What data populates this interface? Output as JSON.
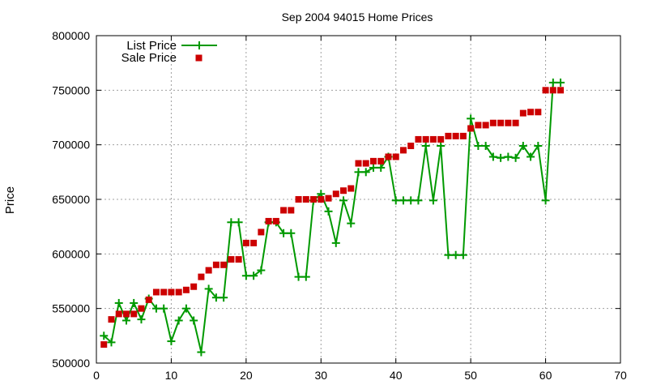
{
  "chart_data": {
    "type": "line",
    "title": "Sep 2004 94015 Home Prices",
    "xlabel": "",
    "ylabel": "Price",
    "xlim": [
      0,
      70
    ],
    "ylim": [
      500000,
      800000
    ],
    "x_ticks": [
      0,
      10,
      20,
      30,
      40,
      50,
      60,
      70
    ],
    "y_ticks": [
      500000,
      550000,
      600000,
      650000,
      700000,
      750000,
      800000
    ],
    "x_tick_labels": [
      "0",
      "10",
      "20",
      "30",
      "40",
      "50",
      "60",
      "70"
    ],
    "y_tick_labels": [
      "500000",
      "550000",
      "600000",
      "650000",
      "700000",
      "750000",
      "800000"
    ],
    "grid": true,
    "legend_position": "top-left",
    "series": [
      {
        "name": "List Price",
        "kind": "line-plus",
        "color": "#009900",
        "x": [
          1,
          2,
          3,
          4,
          5,
          6,
          7,
          8,
          9,
          10,
          11,
          12,
          13,
          14,
          15,
          16,
          17,
          18,
          19,
          20,
          21,
          22,
          23,
          24,
          25,
          26,
          27,
          28,
          29,
          30,
          31,
          32,
          33,
          34,
          35,
          36,
          37,
          38,
          39,
          40,
          41,
          42,
          43,
          44,
          45,
          46,
          47,
          48,
          49,
          50,
          51,
          52,
          53,
          54,
          55,
          56,
          57,
          58,
          59,
          60,
          61,
          62
        ],
        "values": [
          525000,
          519000,
          555000,
          539000,
          555000,
          540000,
          559000,
          550000,
          550000,
          520000,
          539000,
          550000,
          539000,
          510000,
          568000,
          560000,
          560000,
          629000,
          629000,
          580000,
          580000,
          585000,
          629000,
          629000,
          619000,
          619000,
          579000,
          579000,
          649000,
          655000,
          639000,
          610000,
          649000,
          628000,
          675000,
          675000,
          679000,
          679000,
          689000,
          649000,
          649000,
          649000,
          649000,
          699000,
          649000,
          699000,
          599000,
          599000,
          599000,
          724000,
          699000,
          699000,
          689000,
          688000,
          689000,
          688000,
          699000,
          689000,
          699000,
          649000,
          757000,
          757000
        ]
      },
      {
        "name": "Sale Price",
        "kind": "square",
        "color": "#cc0000",
        "x": [
          1,
          2,
          3,
          4,
          5,
          6,
          7,
          8,
          9,
          10,
          11,
          12,
          13,
          14,
          15,
          16,
          17,
          18,
          19,
          20,
          21,
          22,
          23,
          24,
          25,
          26,
          27,
          28,
          29,
          30,
          31,
          32,
          33,
          34,
          35,
          36,
          37,
          38,
          39,
          40,
          41,
          42,
          43,
          44,
          45,
          46,
          47,
          48,
          49,
          50,
          51,
          52,
          53,
          54,
          55,
          56,
          57,
          58,
          59,
          60,
          61,
          62
        ],
        "values": [
          517000,
          540000,
          545000,
          545000,
          545000,
          550000,
          558000,
          565000,
          565000,
          565000,
          565000,
          567000,
          570000,
          579000,
          585000,
          590000,
          590000,
          595000,
          595000,
          610000,
          610000,
          620000,
          630000,
          630000,
          640000,
          640000,
          650000,
          650000,
          650000,
          650000,
          651000,
          655000,
          658000,
          660000,
          683000,
          683000,
          685000,
          685000,
          689000,
          689000,
          695000,
          699000,
          705000,
          705000,
          705000,
          705000,
          708000,
          708000,
          708000,
          715000,
          718000,
          718000,
          720000,
          720000,
          720000,
          720000,
          729000,
          730000,
          730000,
          750000,
          750000,
          750000
        ]
      }
    ]
  }
}
